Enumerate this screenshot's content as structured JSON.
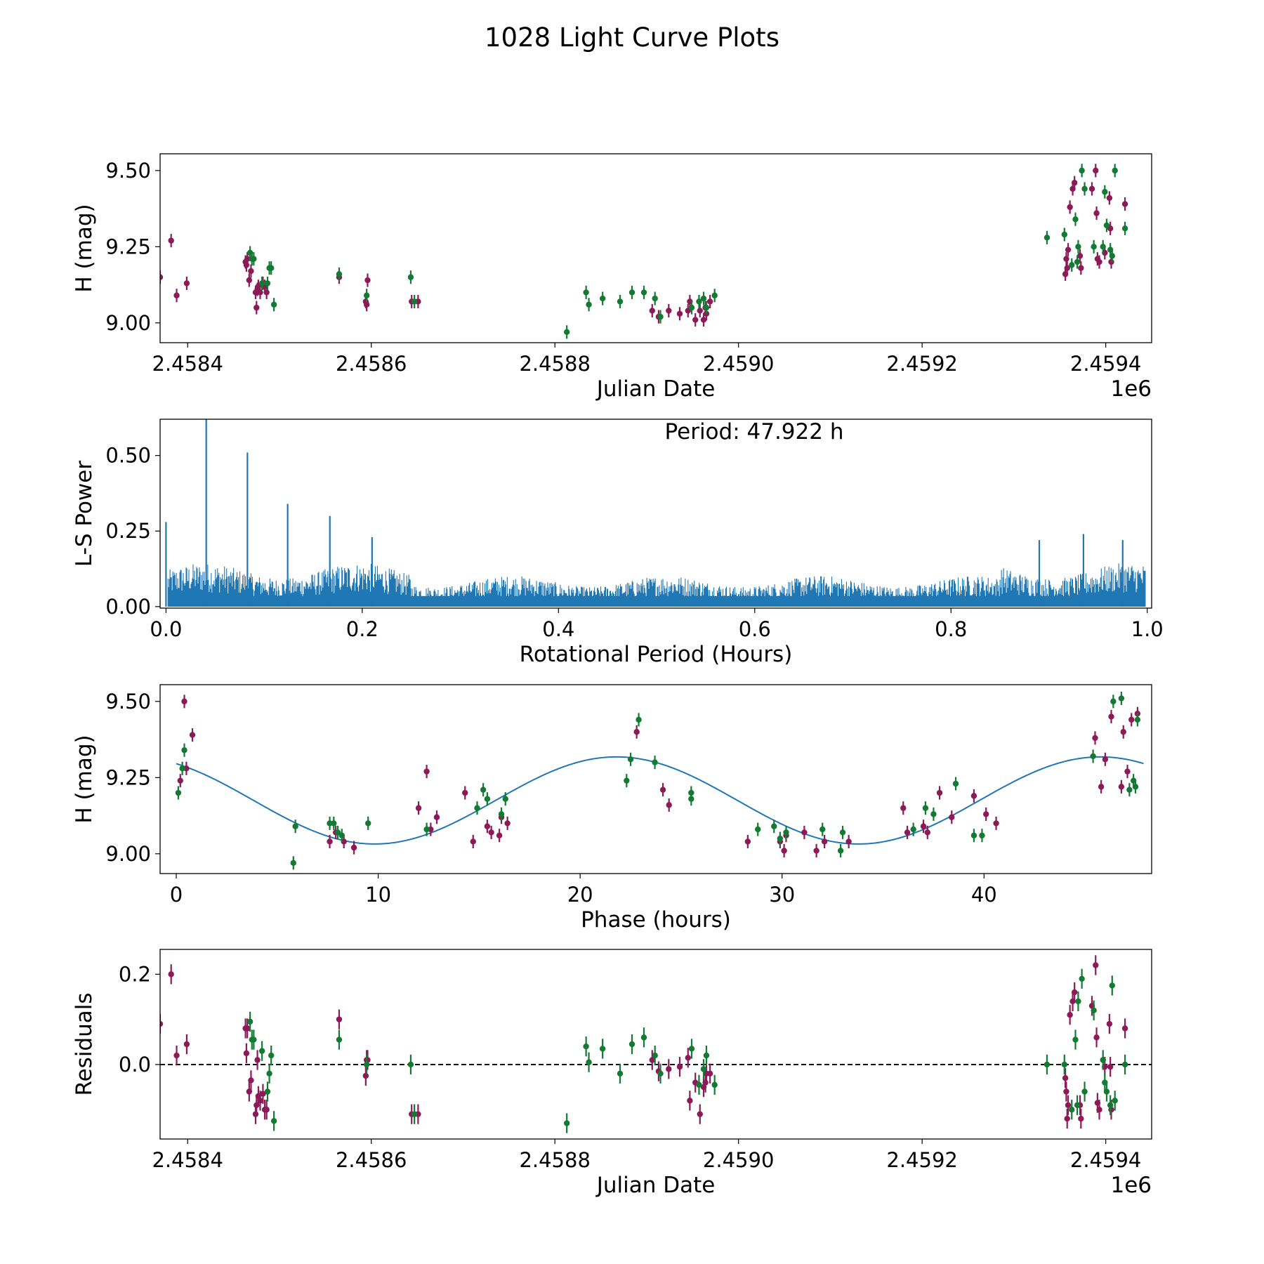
{
  "figure_title": "1028 Light Curve Plots",
  "colors": {
    "magenta": "#8b1a56",
    "green": "#127a32",
    "line": "#1f77b4"
  },
  "chart_data": [
    {
      "type": "scatter",
      "title": "",
      "xlabel": "Julian Date",
      "ylabel": "H (mag)",
      "offset_text": "1e6",
      "xlim": [
        2.45837,
        2.45945
      ],
      "ylim": [
        8.935,
        9.555
      ],
      "xticks": [
        2.4584,
        2.4586,
        2.4588,
        2.459,
        2.4592,
        2.4594
      ],
      "xtick_labels": [
        "2.4584",
        "2.4586",
        "2.4588",
        "2.4590",
        "2.4592",
        "2.4594"
      ],
      "yticks": [
        9.0,
        9.25,
        9.5
      ],
      "ytick_labels": [
        "9.00",
        "9.25",
        "9.50"
      ],
      "series": [
        {
          "name": "magenta",
          "color": "#8b1a56",
          "err": 0.022,
          "x": [
            2.45837,
            2.458382,
            2.458388,
            2.458399,
            2.458463,
            2.458464,
            2.458465,
            2.458467,
            2.458469,
            2.458474,
            2.458475,
            2.458476,
            2.458477,
            2.458479,
            2.458482,
            2.458484,
            2.458486,
            2.458565,
            2.458594,
            2.458595,
            2.458596,
            2.458644,
            2.458651,
            2.458906,
            2.458913,
            2.458924,
            2.458936,
            2.458945,
            2.458947,
            2.458953,
            2.458958,
            2.458962,
            2.458964,
            2.458965,
            2.458969,
            2.459356,
            2.459357,
            2.459358,
            2.459359,
            2.459361,
            2.459364,
            2.459366,
            2.459372,
            2.459373,
            2.459385,
            2.459389,
            2.45939,
            2.459391,
            2.459393,
            2.459399,
            2.459404,
            2.459405,
            2.459406,
            2.459421
          ],
          "y": [
            9.15,
            9.27,
            9.09,
            9.13,
            9.2,
            9.19,
            9.21,
            9.14,
            9.17,
            9.1,
            9.05,
            9.11,
            9.12,
            9.1,
            9.13,
            9.12,
            9.1,
            9.15,
            9.07,
            9.06,
            9.14,
            9.07,
            9.07,
            9.04,
            9.02,
            9.04,
            9.03,
            9.04,
            9.07,
            9.01,
            9.04,
            9.01,
            9.05,
            9.03,
            9.07,
            9.16,
            9.21,
            9.18,
            9.24,
            9.38,
            9.44,
            9.46,
            9.22,
            9.18,
            9.44,
            9.5,
            9.36,
            9.21,
            9.2,
            9.23,
            9.41,
            9.31,
            9.2,
            9.39
          ]
        },
        {
          "name": "green",
          "color": "#127a32",
          "err": 0.022,
          "x": [
            2.458468,
            2.45847,
            2.458472,
            2.458481,
            2.458487,
            2.458489,
            2.458491,
            2.458494,
            2.458565,
            2.458595,
            2.458643,
            2.458647,
            2.458813,
            2.458834,
            2.458837,
            2.458852,
            2.458871,
            2.458884,
            2.458897,
            2.458909,
            2.458915,
            2.458949,
            2.458957,
            2.458962,
            2.458965,
            2.458974,
            2.459336,
            2.459355,
            2.459363,
            2.459367,
            2.459369,
            2.45937,
            2.459374,
            2.459377,
            2.459387,
            2.459397,
            2.459399,
            2.459401,
            2.459405,
            2.459407,
            2.45941,
            2.459421
          ],
          "y": [
            9.23,
            9.21,
            9.21,
            9.13,
            9.13,
            9.18,
            9.18,
            9.06,
            9.16,
            9.09,
            9.15,
            9.07,
            8.97,
            9.1,
            9.06,
            9.08,
            9.07,
            9.1,
            9.1,
            9.08,
            9.02,
            9.05,
            9.07,
            9.08,
            9.05,
            9.09,
            9.28,
            9.29,
            9.19,
            9.34,
            9.2,
            9.25,
            9.5,
            9.44,
            9.25,
            9.25,
            9.43,
            9.32,
            9.24,
            9.22,
            9.5,
            9.31
          ]
        }
      ]
    },
    {
      "type": "line",
      "title": "",
      "xlabel": "Rotational Period (Hours)",
      "ylabel": "L-S Power",
      "annotation": "Period: 47.922 h",
      "xlim": [
        -0.006,
        1.0045
      ],
      "ylim": [
        -0.005,
        0.62
      ],
      "xticks": [
        0.0,
        0.2,
        0.4,
        0.6,
        0.8,
        1.0
      ],
      "xtick_labels": [
        "0.0",
        "0.2",
        "0.4",
        "0.6",
        "0.8",
        "1.0"
      ],
      "yticks": [
        0.0,
        0.25,
        0.5
      ],
      "ytick_labels": [
        "0.00",
        "0.25",
        "0.50"
      ],
      "peaks": [
        {
          "x": 0.0,
          "y": 0.28
        },
        {
          "x": 0.041,
          "y": 0.62
        },
        {
          "x": 0.083,
          "y": 0.51
        },
        {
          "x": 0.124,
          "y": 0.34
        },
        {
          "x": 0.167,
          "y": 0.3
        },
        {
          "x": 0.21,
          "y": 0.23
        },
        {
          "x": 0.935,
          "y": 0.24
        },
        {
          "x": 0.89,
          "y": 0.22
        },
        {
          "x": 0.975,
          "y": 0.22
        }
      ],
      "noise_level": {
        "low_period": 0.12,
        "mid_period": 0.085,
        "high_period": 0.12
      }
    },
    {
      "type": "scatter",
      "title": "",
      "xlabel": "Phase (hours)",
      "ylabel": "H (mag)",
      "xlim": [
        -0.8,
        48.3
      ],
      "ylim": [
        8.935,
        9.555
      ],
      "xticks": [
        0,
        10,
        20,
        30,
        40
      ],
      "xtick_labels": [
        "0",
        "10",
        "20",
        "30",
        "40"
      ],
      "yticks": [
        9.0,
        9.25,
        9.5
      ],
      "ytick_labels": [
        "9.00",
        "9.25",
        "9.50"
      ],
      "fit": {
        "mean": 9.175,
        "amplitude": 0.143,
        "period": 23.961,
        "phase_of_max": 21.8
      },
      "series": [
        {
          "name": "magenta",
          "color": "#8b1a56",
          "err": 0.022,
          "x": [
            0.2,
            0.4,
            0.5,
            0.8,
            7.6,
            7.9,
            8.3,
            8.8,
            12.0,
            12.4,
            12.6,
            12.9,
            14.3,
            14.7,
            15.4,
            15.6,
            16.0,
            16.1,
            16.4,
            22.8,
            24.1,
            24.4,
            28.3,
            29.9,
            30.1,
            30.2,
            31.1,
            31.7,
            32.1,
            33.3,
            36.0,
            36.2,
            37.0,
            37.2,
            37.8,
            38.4,
            39.5,
            40.1,
            40.6,
            45.5,
            45.8,
            46.0,
            46.3,
            46.8,
            46.9,
            47.1,
            47.3,
            47.6
          ],
          "y": [
            9.24,
            9.5,
            9.28,
            9.39,
            9.04,
            9.07,
            9.04,
            9.02,
            9.15,
            9.27,
            9.08,
            9.12,
            9.2,
            9.04,
            9.09,
            9.07,
            9.06,
            9.12,
            9.1,
            9.4,
            9.21,
            9.16,
            9.04,
            9.04,
            9.01,
            9.06,
            9.07,
            9.01,
            9.04,
            9.04,
            9.15,
            9.07,
            9.09,
            9.07,
            9.2,
            9.12,
            9.19,
            9.13,
            9.1,
            9.38,
            9.22,
            9.31,
            9.45,
            9.22,
            9.4,
            9.27,
            9.44,
            9.46
          ]
        },
        {
          "name": "green",
          "color": "#127a32",
          "err": 0.022,
          "x": [
            0.1,
            0.3,
            0.4,
            5.9,
            5.8,
            7.6,
            7.8,
            8.0,
            8.2,
            9.5,
            12.4,
            14.9,
            15.2,
            15.4,
            16.1,
            16.3,
            22.3,
            22.5,
            22.9,
            23.7,
            25.5,
            25.5,
            28.8,
            29.6,
            29.9,
            30.2,
            32.0,
            32.9,
            33.0,
            36.5,
            37.1,
            37.5,
            38.6,
            39.5,
            39.9,
            45.4,
            46.4,
            46.8,
            47.2,
            47.4,
            47.5,
            47.6
          ],
          "y": [
            9.2,
            9.28,
            9.34,
            9.09,
            8.97,
            9.1,
            9.1,
            9.07,
            9.06,
            9.1,
            9.08,
            9.15,
            9.21,
            9.18,
            9.13,
            9.18,
            9.24,
            9.31,
            9.44,
            9.3,
            9.18,
            9.2,
            9.08,
            9.09,
            9.05,
            9.07,
            9.08,
            9.01,
            9.07,
            9.08,
            9.15,
            9.13,
            9.23,
            9.06,
            9.06,
            9.32,
            9.5,
            9.51,
            9.21,
            9.24,
            9.22,
            9.44
          ]
        }
      ]
    },
    {
      "type": "scatter",
      "title": "",
      "xlabel": "Julian Date",
      "ylabel": "Residuals",
      "offset_text": "1e6",
      "xlim": [
        2.45837,
        2.45945
      ],
      "ylim": [
        -0.165,
        0.255
      ],
      "xticks": [
        2.4584,
        2.4586,
        2.4588,
        2.459,
        2.4592,
        2.4594
      ],
      "xtick_labels": [
        "2.4584",
        "2.4586",
        "2.4588",
        "2.4590",
        "2.4592",
        "2.4594"
      ],
      "yticks": [
        0.0,
        0.2
      ],
      "ytick_labels": [
        "0.0",
        "0.2"
      ],
      "reference_line": 0.0,
      "series": [
        {
          "name": "magenta",
          "color": "#8b1a56",
          "err": 0.022,
          "x": [
            2.45837,
            2.458382,
            2.458388,
            2.458399,
            2.458463,
            2.458464,
            2.458465,
            2.458467,
            2.458469,
            2.458474,
            2.458475,
            2.458476,
            2.458477,
            2.458479,
            2.458482,
            2.458484,
            2.458486,
            2.458565,
            2.458594,
            2.458595,
            2.458596,
            2.458644,
            2.458651,
            2.458906,
            2.458913,
            2.458924,
            2.458936,
            2.458945,
            2.458947,
            2.458953,
            2.458958,
            2.458962,
            2.458964,
            2.458965,
            2.458969,
            2.459356,
            2.459357,
            2.459358,
            2.459359,
            2.459361,
            2.459364,
            2.459366,
            2.459372,
            2.459373,
            2.459385,
            2.459389,
            2.45939,
            2.459391,
            2.459393,
            2.459399,
            2.459404,
            2.459405,
            2.459406,
            2.459421
          ],
          "y": [
            0.09,
            0.2,
            0.02,
            0.045,
            0.08,
            0.025,
            0.08,
            -0.06,
            -0.035,
            -0.11,
            -0.09,
            0.01,
            -0.07,
            -0.08,
            -0.065,
            -0.1,
            -0.1,
            0.1,
            -0.025,
            0.01,
            0.01,
            -0.11,
            -0.11,
            0.01,
            -0.015,
            -0.01,
            -0.005,
            0.015,
            -0.08,
            -0.04,
            -0.11,
            -0.05,
            -0.04,
            -0.02,
            -0.02,
            -0.03,
            -0.06,
            -0.12,
            -0.09,
            0.11,
            0.14,
            0.16,
            -0.09,
            -0.12,
            0.13,
            0.22,
            0.06,
            -0.085,
            -0.1,
            -0.005,
            0.09,
            -0.005,
            -0.1,
            0.08
          ]
        },
        {
          "name": "green",
          "color": "#127a32",
          "err": 0.022,
          "x": [
            2.458468,
            2.45847,
            2.458472,
            2.458481,
            2.458487,
            2.458489,
            2.458491,
            2.458494,
            2.458565,
            2.458595,
            2.458643,
            2.458647,
            2.458813,
            2.458834,
            2.458837,
            2.458852,
            2.458871,
            2.458884,
            2.458897,
            2.458909,
            2.458915,
            2.458949,
            2.458957,
            2.458962,
            2.458965,
            2.458974,
            2.459336,
            2.459355,
            2.459363,
            2.459367,
            2.459369,
            2.45937,
            2.459374,
            2.459377,
            2.459387,
            2.459397,
            2.459399,
            2.459401,
            2.459405,
            2.459407,
            2.45941,
            2.459421
          ],
          "y": [
            0.095,
            0.055,
            0.055,
            0.03,
            -0.06,
            -0.02,
            0.02,
            -0.125,
            0.055,
            0.0,
            0.0,
            -0.11,
            -0.13,
            0.04,
            0.005,
            0.035,
            -0.02,
            0.045,
            0.06,
            0.02,
            -0.02,
            0.035,
            -0.045,
            -0.01,
            0.02,
            -0.045,
            0.0,
            0.0,
            -0.1,
            0.055,
            -0.09,
            0.14,
            0.19,
            -0.06,
            0.12,
            0.01,
            -0.04,
            -0.06,
            -0.09,
            0.175,
            -0.08,
            0.0
          ]
        }
      ]
    }
  ]
}
